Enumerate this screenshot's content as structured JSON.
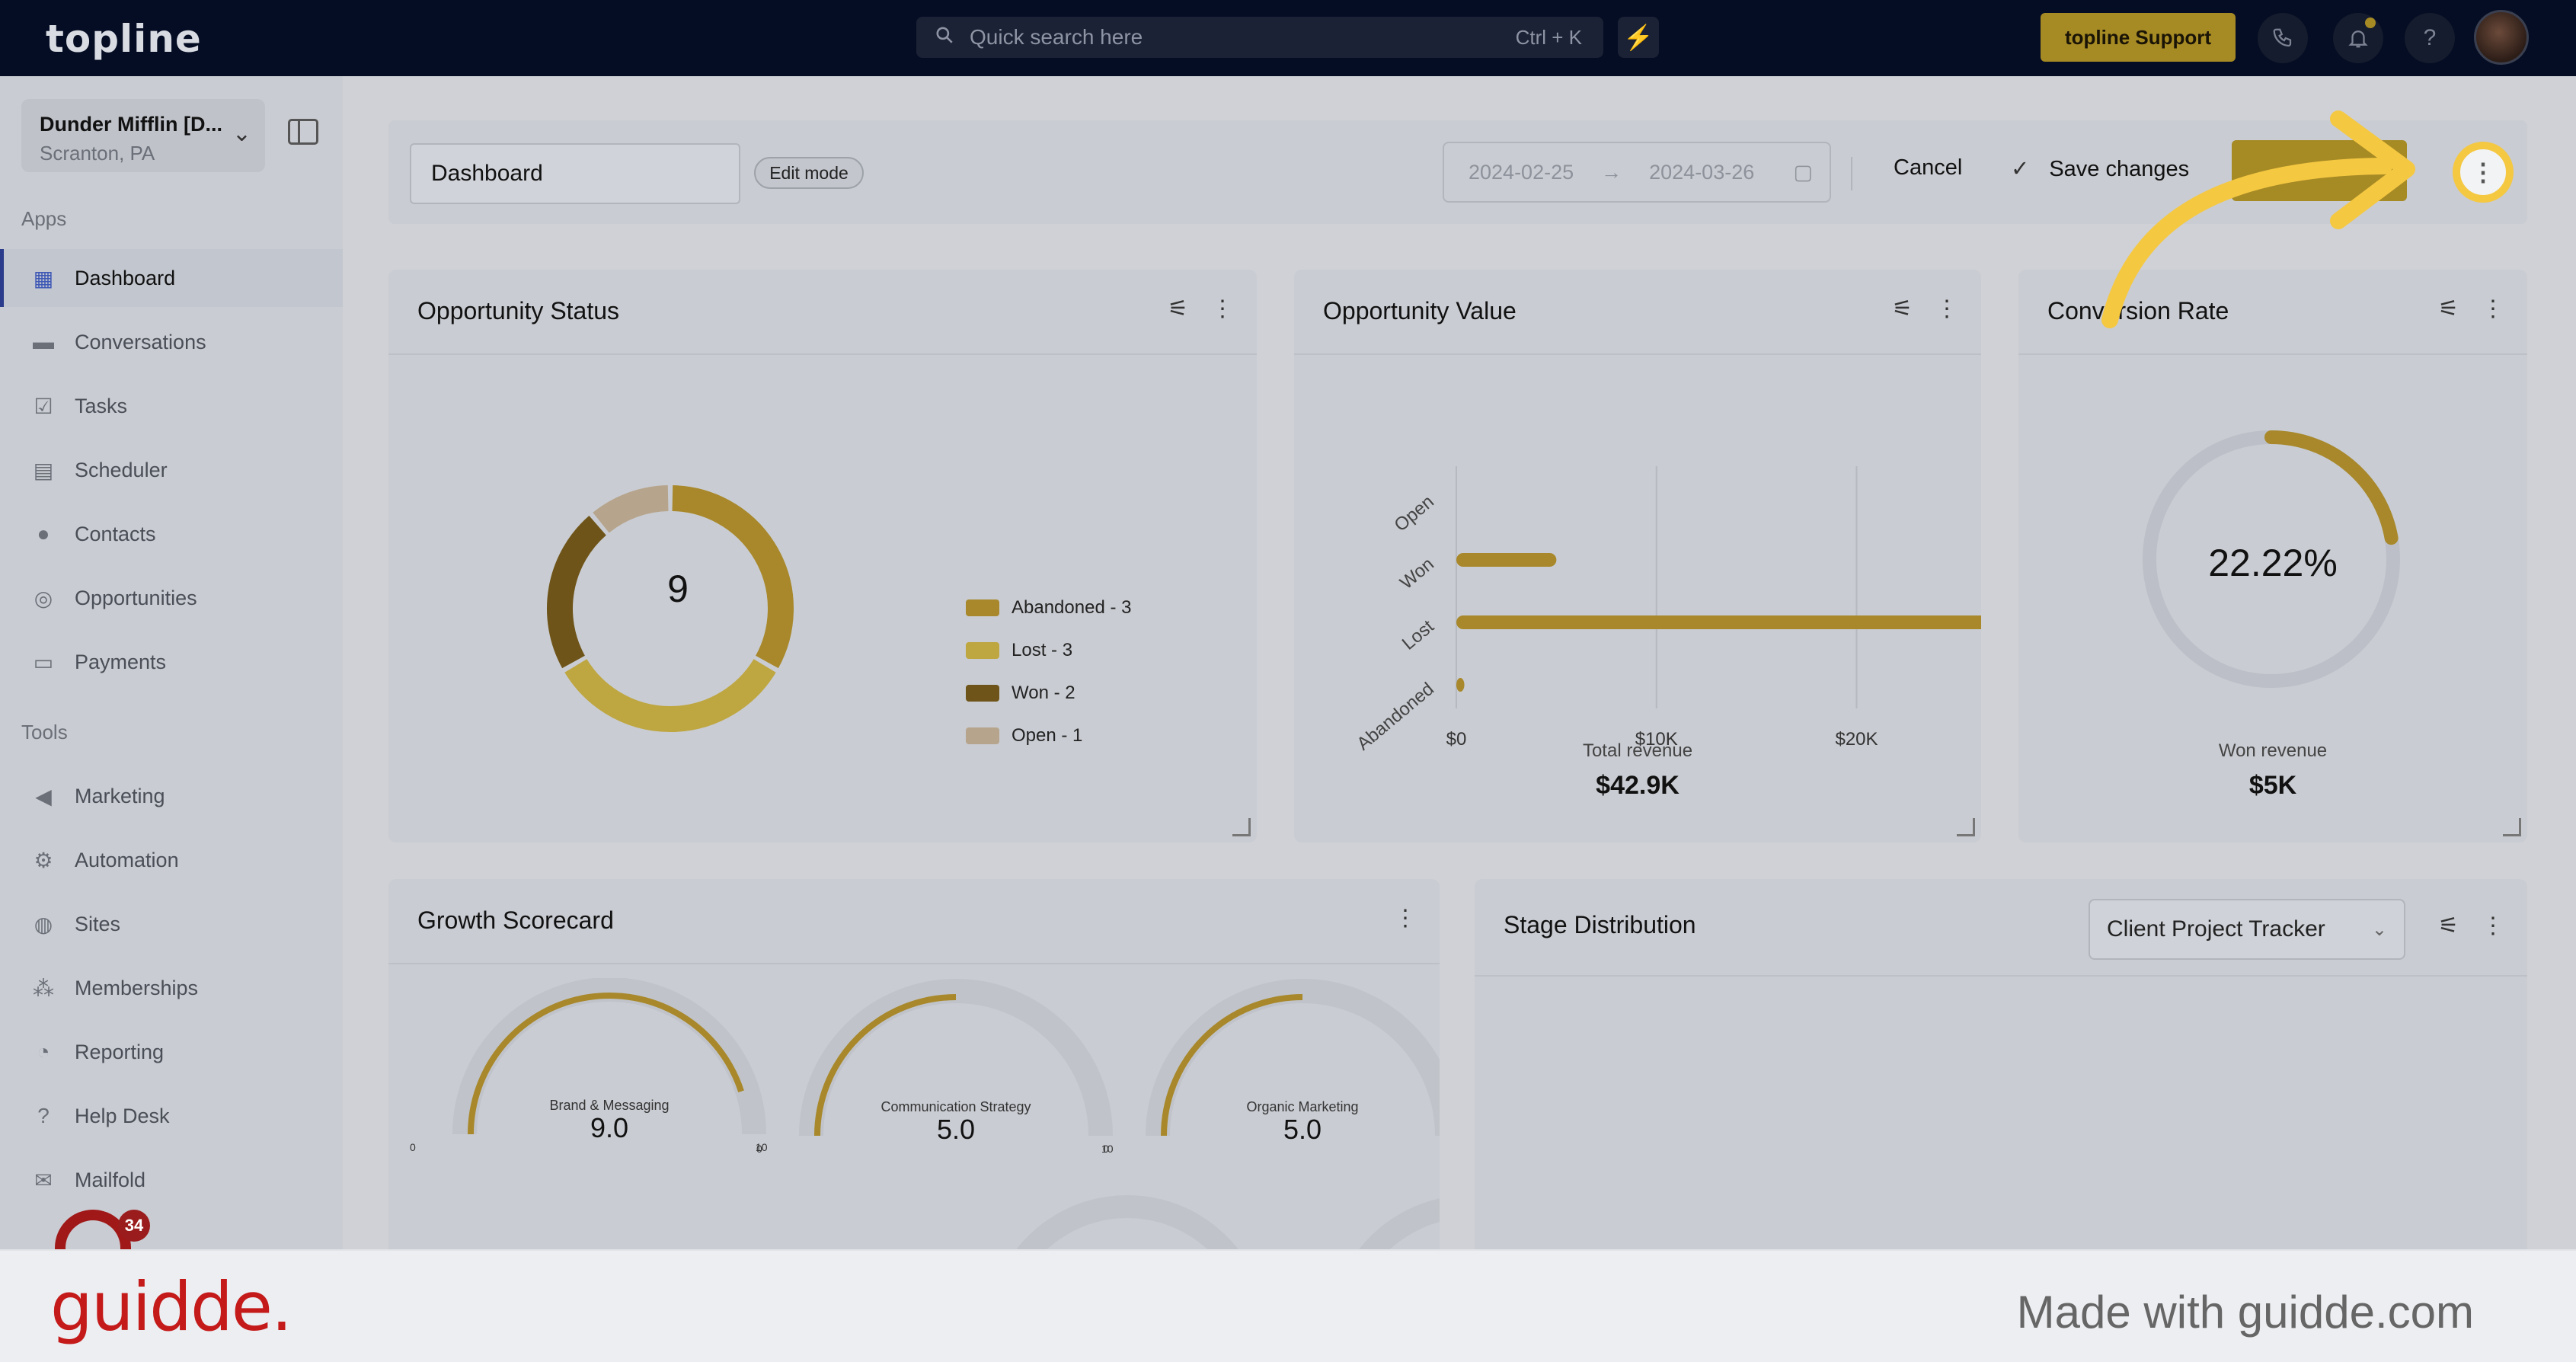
{
  "topbar": {
    "logo": "topline",
    "search_placeholder": "Quick search here",
    "search_shortcut": "Ctrl + K",
    "support_label": "topline Support"
  },
  "sidebar": {
    "location_name": "Dunder Mifflin [D...",
    "location_sub": "Scranton, PA",
    "apps_header": "Apps",
    "apps": [
      {
        "label": "Dashboard",
        "icon": "dashboard-icon"
      },
      {
        "label": "Conversations",
        "icon": "chat-icon"
      },
      {
        "label": "Tasks",
        "icon": "tasks-icon"
      },
      {
        "label": "Scheduler",
        "icon": "calendar-icon"
      },
      {
        "label": "Contacts",
        "icon": "person-icon"
      },
      {
        "label": "Opportunities",
        "icon": "target-icon"
      },
      {
        "label": "Payments",
        "icon": "card-icon"
      }
    ],
    "tools_header": "Tools",
    "tools": [
      {
        "label": "Marketing",
        "icon": "megaphone-icon"
      },
      {
        "label": "Automation",
        "icon": "gears-icon"
      },
      {
        "label": "Sites",
        "icon": "globe-icon"
      },
      {
        "label": "Memberships",
        "icon": "group-icon"
      },
      {
        "label": "Reporting",
        "icon": "pie-icon"
      },
      {
        "label": "Help Desk",
        "icon": "help-icon"
      },
      {
        "label": "Mailfold",
        "icon": "mail-icon"
      }
    ],
    "notification_count": "34"
  },
  "toolbar": {
    "dashboard_name": "Dashboard",
    "edit_mode": "Edit mode",
    "date_start": "2024-02-25",
    "date_end": "2024-03-26",
    "cancel": "Cancel",
    "save": "Save changes"
  },
  "opportunity_status": {
    "title": "Opportunity Status",
    "total": "9",
    "legend": [
      "Abandoned - 3",
      "Lost - 3",
      "Won - 2",
      "Open - 1"
    ],
    "colors": [
      "#a8882a",
      "#bea640",
      "#6e5418",
      "#b6a48c"
    ]
  },
  "opportunity_value": {
    "title": "Opportunity Value",
    "total_label": "Total revenue",
    "total_value": "$42.9K"
  },
  "conversion_rate": {
    "title": "Conversion Rate",
    "value": "22.22%",
    "percent": 22.22,
    "won_label": "Won revenue",
    "won_value": "$5K"
  },
  "growth_scorecard": {
    "title": "Growth Scorecard",
    "gauges": [
      {
        "label": "Brand & Messaging",
        "value": "9.0",
        "num": 9.0,
        "min": "0",
        "max": "10"
      },
      {
        "label": "Communication Strategy",
        "value": "5.0",
        "num": 5.0,
        "min": "0",
        "max": "10"
      },
      {
        "label": "Organic Marketing",
        "value": "5.0",
        "num": 5.0,
        "min": "0",
        "max": "10"
      }
    ]
  },
  "stage_distribution": {
    "title": "Stage Distribution",
    "pipeline": "Client Project Tracker"
  },
  "footer": {
    "brand": "guidde.",
    "made_with": "Made with guidde.com"
  },
  "chart_data": [
    {
      "type": "pie",
      "title": "Opportunity Status",
      "categories": [
        "Abandoned",
        "Lost",
        "Won",
        "Open"
      ],
      "values": [
        3,
        3,
        2,
        1
      ]
    },
    {
      "type": "bar",
      "title": "Opportunity Value",
      "orientation": "horizontal",
      "categories": [
        "Open",
        "Won",
        "Lost",
        "Abandoned"
      ],
      "values": [
        0,
        5000,
        37500,
        400
      ],
      "xlim": [
        0,
        40000
      ],
      "xticks": [
        "$0",
        "$10K",
        "$20K",
        "$30K",
        "$40K"
      ],
      "grid": true
    }
  ]
}
